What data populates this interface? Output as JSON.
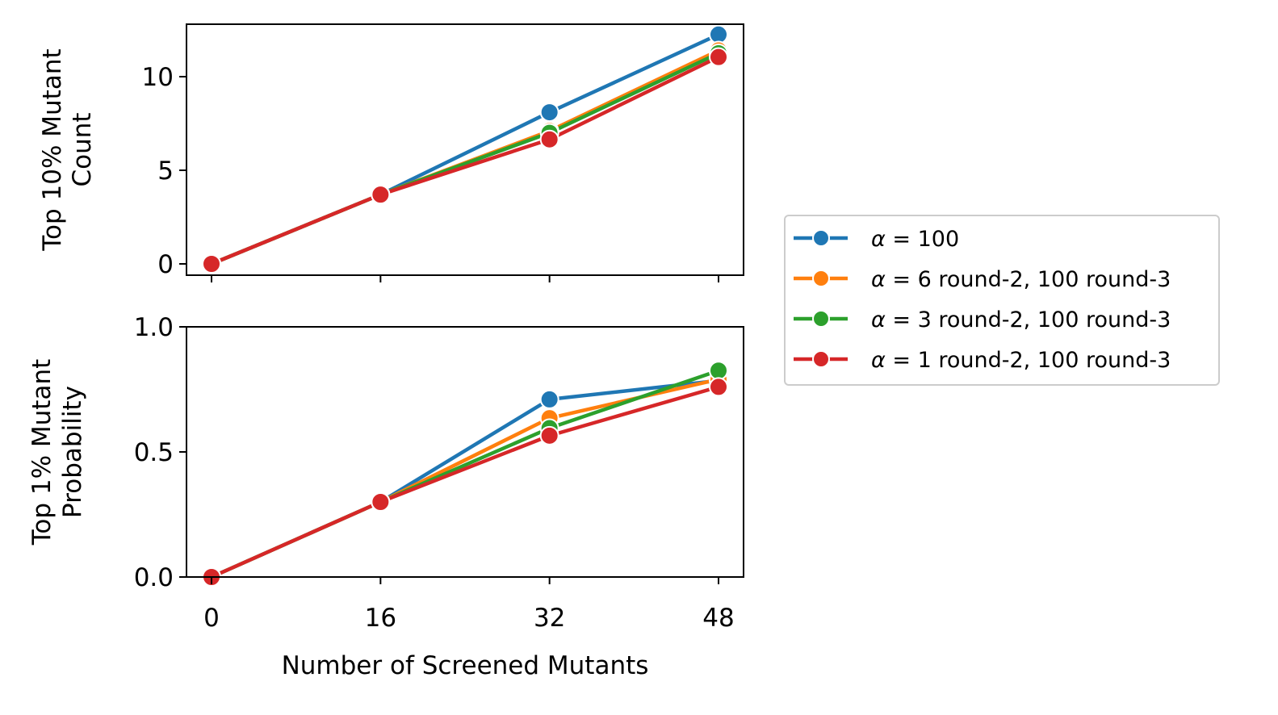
{
  "chart_data": [
    {
      "type": "line",
      "ylabel": [
        "Top 10% Mutant",
        "Count"
      ],
      "xlabel": "",
      "x": [
        0,
        16,
        32,
        48
      ],
      "xticks": [
        "0",
        "16",
        "32",
        "48"
      ],
      "ylim": [
        -0.6,
        12.8
      ],
      "yticks": [
        "0",
        "5",
        "10"
      ],
      "series": [
        {
          "name": "α = 100",
          "color": "#1f77b4",
          "values": [
            0,
            3.7,
            8.1,
            12.25
          ]
        },
        {
          "name": "α = 6 round-2, 100 round-3",
          "color": "#ff7f0e",
          "values": [
            0,
            3.7,
            7.1,
            11.4
          ]
        },
        {
          "name": "α = 3 round-2, 100 round-3",
          "color": "#2ca02c",
          "values": [
            0,
            3.7,
            7.0,
            11.25
          ]
        },
        {
          "name": "α = 1 round-2, 100 round-3",
          "color": "#d62728",
          "values": [
            0,
            3.7,
            6.65,
            11.05
          ]
        }
      ]
    },
    {
      "type": "line",
      "ylabel": [
        "Top 1% Mutant",
        "Probability"
      ],
      "xlabel": "Number of Screened Mutants",
      "x": [
        0,
        16,
        32,
        48
      ],
      "xticks": [
        "0",
        "16",
        "32",
        "48"
      ],
      "ylim": [
        0,
        1.0
      ],
      "yticks": [
        "0.0",
        "0.5",
        "1.0"
      ],
      "series": [
        {
          "name": "α = 100",
          "color": "#1f77b4",
          "values": [
            0,
            0.3,
            0.71,
            0.785
          ]
        },
        {
          "name": "α = 6 round-2, 100 round-3",
          "color": "#ff7f0e",
          "values": [
            0,
            0.3,
            0.635,
            0.79
          ]
        },
        {
          "name": "α = 3 round-2, 100 round-3",
          "color": "#2ca02c",
          "values": [
            0,
            0.3,
            0.595,
            0.825
          ]
        },
        {
          "name": "α = 1 round-2, 100 round-3",
          "color": "#d62728",
          "values": [
            0,
            0.3,
            0.565,
            0.76
          ]
        }
      ]
    }
  ],
  "legend": {
    "placement": "right",
    "entries": [
      {
        "prefix": "α",
        "rest": " = 100"
      },
      {
        "prefix": "α",
        "rest": " = 6 round-2, 100 round-3"
      },
      {
        "prefix": "α",
        "rest": " = 3 round-2, 100 round-3"
      },
      {
        "prefix": "α",
        "rest": " = 1 round-2, 100 round-3"
      }
    ]
  }
}
